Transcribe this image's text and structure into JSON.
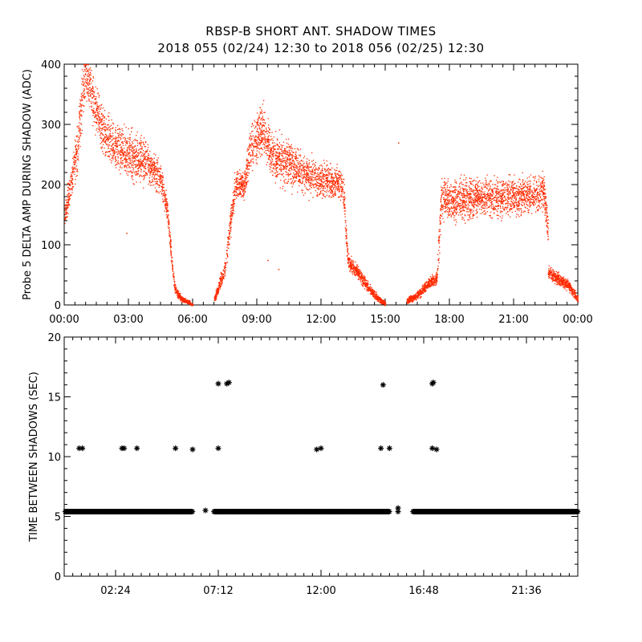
{
  "title": "RBSP-B SHORT ANT. SHADOW TIMES",
  "subtitle": "2018 055 (02/24) 12:30 to 2018 056 (02/25) 12:30",
  "colors": {
    "points": "#ff2a00",
    "markers": "#000000",
    "axes": "#000000"
  },
  "chart_data": [
    {
      "type": "scatter",
      "ylabel": "Probe 5 DELTA AMP DURING SHADOW (ADC)",
      "xlabel": "",
      "xlim_hours": [
        0,
        24
      ],
      "ylim": [
        0,
        400
      ],
      "xticks": [
        "00:00",
        "03:00",
        "06:00",
        "09:00",
        "12:00",
        "15:00",
        "18:00",
        "21:00",
        "00:00"
      ],
      "xtick_hours": [
        0,
        3,
        6,
        9,
        12,
        15,
        18,
        21,
        24
      ],
      "yticks": [
        0,
        100,
        200,
        300,
        400
      ],
      "grid": false,
      "color": "#ff2a00",
      "bands": [
        {
          "x": [
            0.0,
            0.3,
            0.6,
            0.8,
            1.0,
            1.4,
            1.7,
            2.0,
            2.5,
            3.0,
            3.5,
            4.0,
            4.5,
            4.8,
            5.0,
            5.15,
            5.3,
            5.5,
            5.8,
            6.0
          ],
          "center": [
            150,
            200,
            260,
            340,
            390,
            330,
            300,
            275,
            260,
            250,
            245,
            230,
            210,
            160,
            80,
            30,
            18,
            10,
            5,
            0
          ],
          "spread": [
            15,
            25,
            30,
            40,
            35,
            30,
            30,
            30,
            30,
            30,
            30,
            25,
            20,
            15,
            10,
            6,
            5,
            4,
            3,
            2
          ]
        },
        {
          "x": [
            7.0,
            7.2,
            7.5,
            7.8,
            8.0,
            8.4,
            8.7,
            9.0,
            9.3,
            9.6,
            10.0,
            10.5,
            11.0,
            11.5,
            12.0,
            12.5,
            13.0,
            13.1,
            13.2,
            13.3
          ],
          "center": [
            10,
            30,
            60,
            150,
            200,
            200,
            260,
            280,
            290,
            260,
            240,
            235,
            225,
            215,
            210,
            205,
            200,
            160,
            90,
            70
          ],
          "spread": [
            4,
            8,
            12,
            20,
            20,
            20,
            30,
            35,
            35,
            30,
            30,
            30,
            25,
            25,
            25,
            20,
            20,
            20,
            15,
            10
          ]
        },
        {
          "x": [
            13.3,
            13.7,
            14.0,
            14.3,
            14.6,
            15.0
          ],
          "center": [
            70,
            55,
            40,
            25,
            12,
            3
          ],
          "spread": [
            10,
            8,
            8,
            6,
            5,
            3
          ]
        },
        {
          "x": [
            16.0,
            16.3,
            16.6,
            17.0,
            17.4,
            17.5,
            17.6,
            18.0,
            19.0,
            20.0,
            21.0,
            22.0,
            22.4,
            22.6
          ],
          "center": [
            8,
            12,
            20,
            35,
            45,
            110,
            175,
            175,
            178,
            180,
            182,
            185,
            190,
            120
          ],
          "spread": [
            4,
            5,
            6,
            8,
            8,
            30,
            25,
            25,
            25,
            25,
            25,
            25,
            25,
            20
          ]
        },
        {
          "x": [
            22.6,
            22.8,
            23.0,
            23.5,
            24.0
          ],
          "center": [
            55,
            50,
            45,
            35,
            10
          ],
          "spread": [
            8,
            8,
            8,
            7,
            5
          ]
        }
      ],
      "outliers": [
        [
          2.9,
          120
        ],
        [
          15.6,
          270
        ],
        [
          9.5,
          75
        ],
        [
          20.2,
          150
        ],
        [
          10.0,
          60
        ]
      ]
    },
    {
      "type": "scatter",
      "ylabel": "TIME BETWEEN SHADOWS (SEC)",
      "xlabel": "",
      "xlim_hours": [
        0,
        24
      ],
      "ylim": [
        0,
        20
      ],
      "xticks": [
        "02:24",
        "07:12",
        "12:00",
        "16:48",
        "21:36"
      ],
      "xtick_hours": [
        2.4,
        7.2,
        12.0,
        16.8,
        21.6
      ],
      "yticks": [
        0,
        5,
        10,
        15,
        20
      ],
      "grid": false,
      "marker": "asterisk",
      "color": "#000000",
      "baseline": {
        "y": 5.4,
        "segments": [
          [
            0.05,
            6.0
          ],
          [
            7.0,
            15.2
          ],
          [
            16.3,
            24.0
          ]
        ]
      },
      "points": [
        [
          0.7,
          10.7
        ],
        [
          0.85,
          10.7
        ],
        [
          2.7,
          10.7
        ],
        [
          2.8,
          10.7
        ],
        [
          3.4,
          10.7
        ],
        [
          5.2,
          10.7
        ],
        [
          6.0,
          10.6
        ],
        [
          7.2,
          10.7
        ],
        [
          7.2,
          16.1
        ],
        [
          7.6,
          16.1
        ],
        [
          7.7,
          16.2
        ],
        [
          11.8,
          10.6
        ],
        [
          12.0,
          10.7
        ],
        [
          14.8,
          10.7
        ],
        [
          14.9,
          16.0
        ],
        [
          15.2,
          10.7
        ],
        [
          17.2,
          16.1
        ],
        [
          17.25,
          16.2
        ],
        [
          17.2,
          10.7
        ],
        [
          17.4,
          10.6
        ],
        [
          6.6,
          5.5
        ],
        [
          15.6,
          5.7
        ],
        [
          15.6,
          5.4
        ]
      ]
    }
  ]
}
